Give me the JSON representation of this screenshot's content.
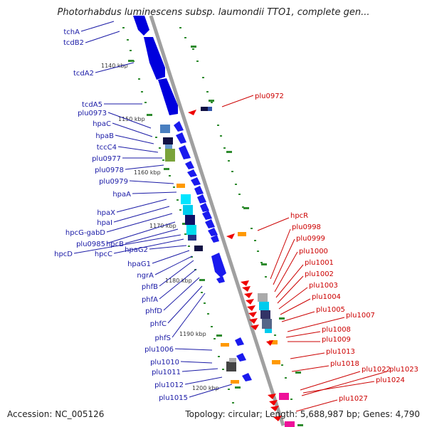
{
  "title": "Photorhabdus luminescens subsp. laumondii TTO1, complete gen...",
  "accession": "Accession: NC_005126",
  "topology": "Topology: circular; Length: 5,688,987 bp; Genes: 4,790",
  "colors": {
    "backbone": "#9a9a9a",
    "blue_gene": "#0000ee",
    "red_gene": "#ee0000",
    "blue_label": "#1a1aa6",
    "red_label": "#cc0000",
    "tick": "#2e8b2e"
  },
  "kbp_labels": [
    "1140 kbp",
    "1150 kbp",
    "1160 kbp",
    "1170 kbp",
    "1180 kbp",
    "1190 kbp",
    "1200 kbp"
  ],
  "left_labels": [
    "tchA",
    "tcdB2",
    "tcdA2",
    "tcdA5",
    "plu0973",
    "hpaC",
    "hpaB",
    "tccC4",
    "plu0977",
    "plu0978",
    "plu0979",
    "hpaA",
    "hpaX",
    "hpaI",
    "hpcG-gabD",
    "plu0985",
    "hpcB",
    "hpcD",
    "hpcC",
    "hpaG2",
    "hpaG1",
    "ngrA",
    "phfB",
    "phfA",
    "phfD",
    "phfC",
    "phfS",
    "plu1006",
    "plu1010",
    "plu1011",
    "plu1012",
    "plu1015"
  ],
  "right_labels": [
    "plu0972",
    "hpcR",
    "plu0998",
    "plu0999",
    "plu1000",
    "plu1001",
    "plu1002",
    "plu1003",
    "plu1004",
    "plu1005",
    "plu1007",
    "plu1008",
    "plu1009",
    "plu1013",
    "plu1018",
    "plu1022",
    "plu1023",
    "plu1024",
    "plu1027"
  ]
}
